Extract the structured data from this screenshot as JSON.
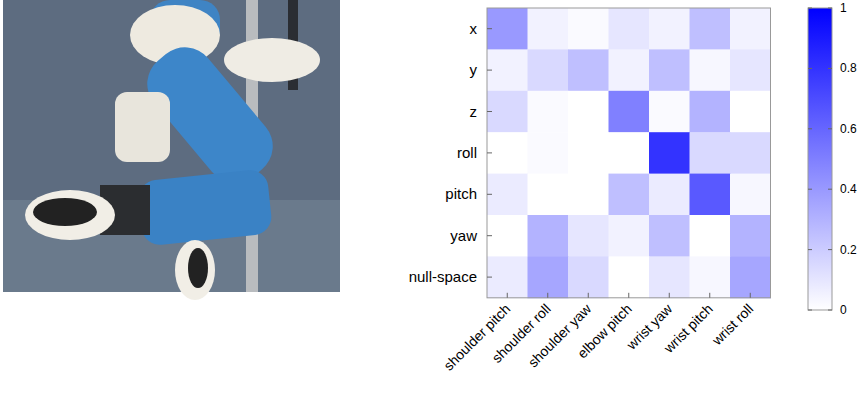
{
  "chart_data": {
    "type": "heatmap",
    "x_categories": [
      "shoulder pitch",
      "shoulder roll",
      "shoulder yaw",
      "elbow pitch",
      "wrist yaw",
      "wrist pitch",
      "wrist roll"
    ],
    "y_categories": [
      "x",
      "y",
      "z",
      "roll",
      "pitch",
      "yaw",
      "null-space"
    ],
    "values": [
      [
        0.4,
        0.05,
        0.02,
        0.1,
        0.05,
        0.25,
        0.05
      ],
      [
        0.05,
        0.15,
        0.25,
        0.05,
        0.25,
        0.03,
        0.1
      ],
      [
        0.15,
        0.02,
        0.0,
        0.5,
        0.02,
        0.3,
        0.0
      ],
      [
        0.0,
        0.02,
        0.0,
        0.0,
        0.8,
        0.15,
        0.15
      ],
      [
        0.08,
        0.0,
        0.0,
        0.25,
        0.08,
        0.65,
        0.03
      ],
      [
        0.0,
        0.3,
        0.1,
        0.05,
        0.25,
        0.0,
        0.3
      ],
      [
        0.08,
        0.35,
        0.15,
        0.0,
        0.1,
        0.03,
        0.35
      ]
    ],
    "color": "#0000ff",
    "colorbar_range": [
      0,
      1
    ],
    "colorbar_ticks": [
      0,
      0.2,
      0.4,
      0.6,
      0.8,
      1
    ]
  }
}
